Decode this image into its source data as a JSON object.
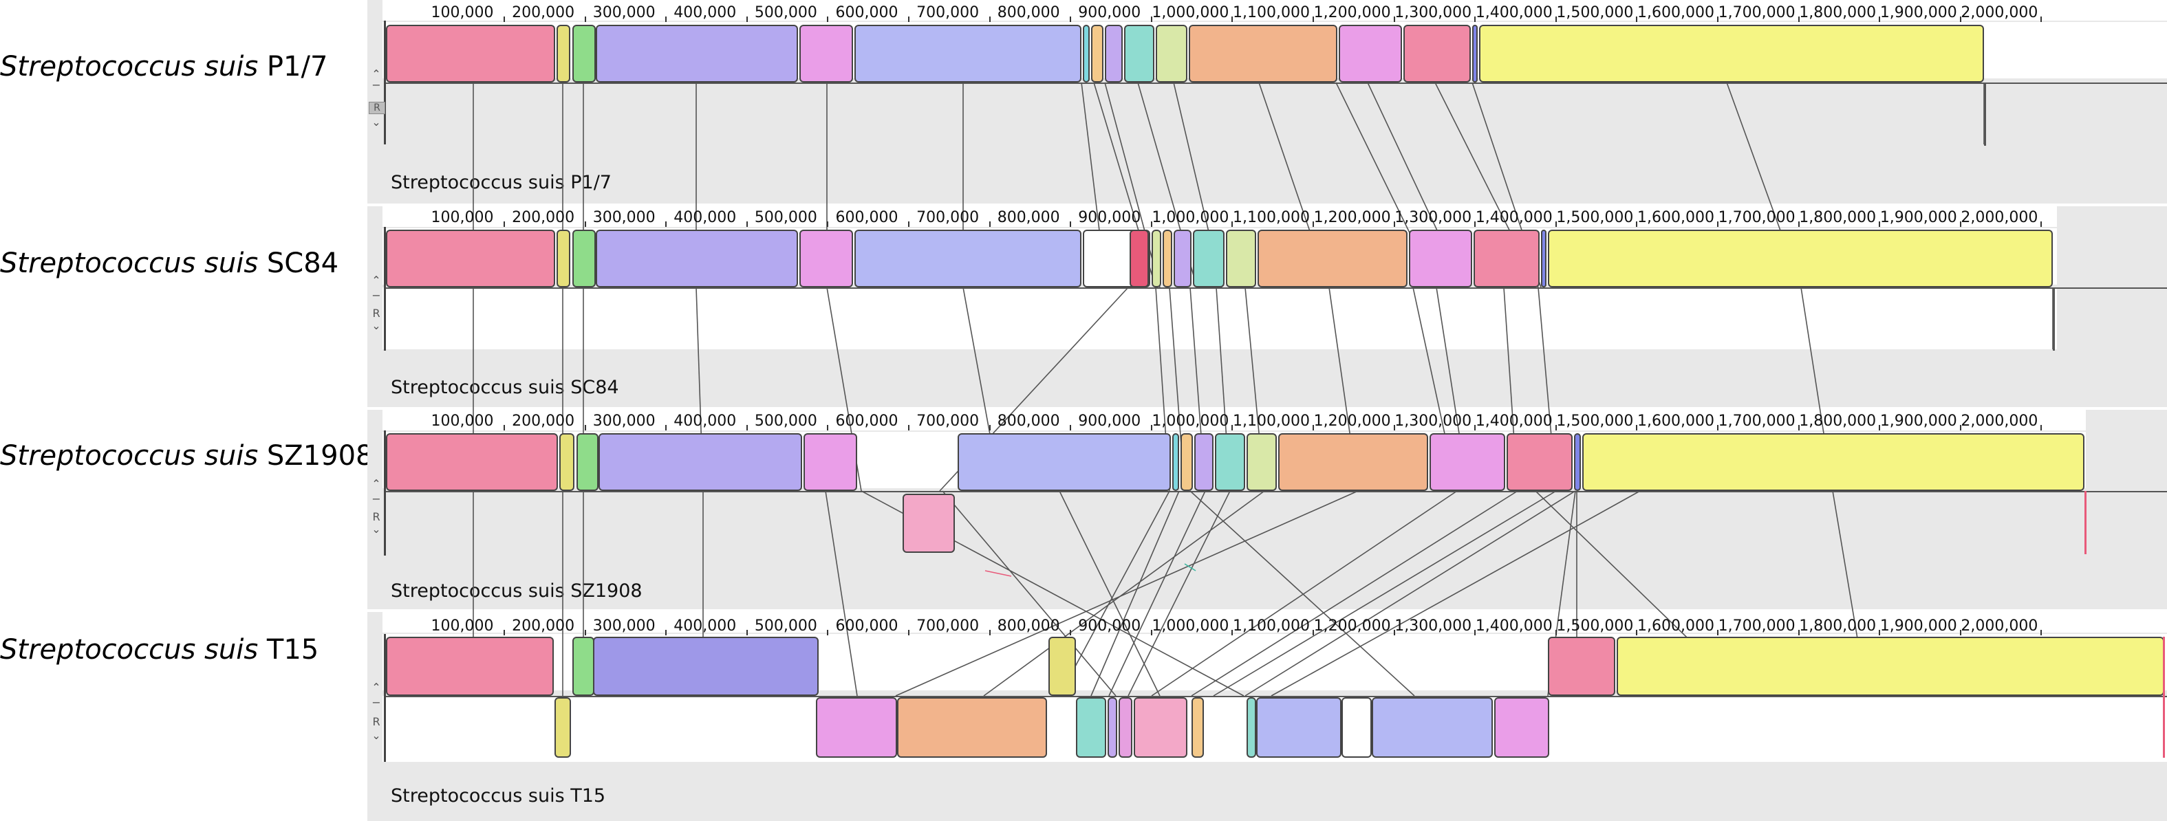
{
  "ticks": [
    "100,000",
    "200,000",
    "300,000",
    "400,000",
    "500,000",
    "600,000",
    "700,000",
    "800,000",
    "900,000",
    "1,000,000",
    "1,100,000",
    "1,200,000",
    "1,300,000",
    "1,400,000",
    "1,500,000",
    "1,600,000",
    "1,700,000",
    "1,800,000",
    "1,900,000",
    "2,000,000"
  ],
  "controls": {
    "up": "⌃",
    "minus": "−",
    "reverse": "R",
    "down": "⌄"
  },
  "genomes": [
    {
      "species": "Streptococcus suis",
      "strain": "P1/7",
      "panel_name": "Streptococcus suis P1/7",
      "length_bp": 2007491
    },
    {
      "species": "Streptococcus suis",
      "strain": "SC84",
      "panel_name": "Streptococcus suis SC84",
      "length_bp": 2095898
    },
    {
      "species": "Streptococcus suis",
      "strain": "SZ1908",
      "panel_name": "Streptococcus suis SZ1908",
      "length_bp": 2024574
    },
    {
      "species": "Streptococcus suis",
      "strain": "T15",
      "panel_name": "Streptococcus suis T15",
      "length_bp": 2055000
    }
  ],
  "colors": {
    "pink": "#f08aa6",
    "yellowgreen": "#e6e07a",
    "green": "#8fdc8a",
    "lavender": "#b4a9f0",
    "magenta": "#ea9ee8",
    "blue": "#7f86e8",
    "cyan": "#8fdcd0",
    "lightgreen": "#d9e8a8",
    "peach": "#f2b48c",
    "yellow": "#f5f584",
    "orange": "#f4c98a",
    "red": "#e85a7a",
    "purple": "#b56ee0",
    "seagreen": "#86d8b0"
  }
}
